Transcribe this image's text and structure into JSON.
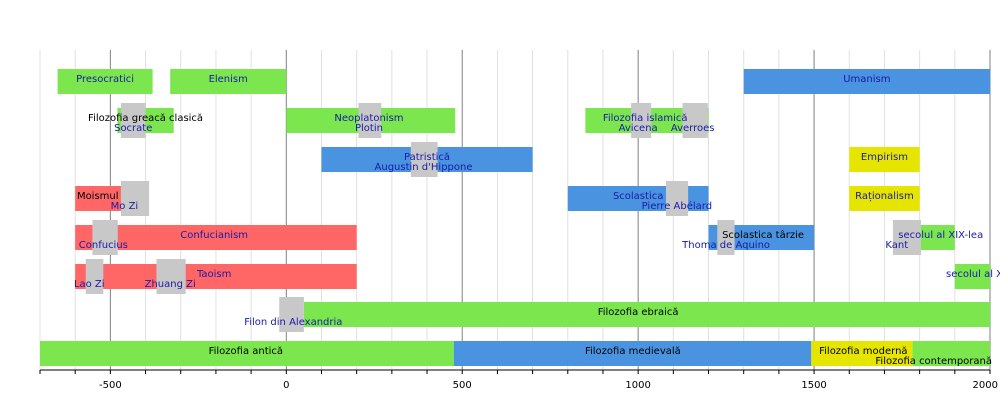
{
  "chart_data": {
    "type": "timeline",
    "x_range": [
      -700,
      2000
    ],
    "major_ticks": [
      {
        "value": -500,
        "label": "-500"
      },
      {
        "value": 0,
        "label": "0"
      },
      {
        "value": 500,
        "label": "500"
      },
      {
        "value": 1000,
        "label": "1000"
      },
      {
        "value": 1500,
        "label": "1500"
      },
      {
        "value": 2000,
        "label": "2000"
      }
    ],
    "minor_step": 100,
    "colors": {
      "green": "#7be64e",
      "blue": "#4a93e0",
      "red": "#ff6666",
      "yellow": "#e5e500",
      "gray": "#c8c8c8",
      "text_blue": "#1a1aa6",
      "text_black": "#000000",
      "grid_minor": "#e0e0e0",
      "grid_major": "#808080"
    },
    "bars": [
      {
        "label": "Presocratici",
        "start": -650,
        "end": -380,
        "row": 0,
        "color": "green",
        "text_color": "text_blue",
        "label_at": -515,
        "align": "middle",
        "line": 0
      },
      {
        "label": "Elenism",
        "start": -330,
        "end": 0,
        "row": 0,
        "color": "green",
        "text_color": "text_blue",
        "label_at": -165,
        "align": "middle",
        "line": 0
      },
      {
        "label": "Umanism",
        "start": 1300,
        "end": 2000,
        "row": 0,
        "color": "blue",
        "text_color": "text_blue",
        "label_at": 1650,
        "align": "middle",
        "line": 0
      },
      {
        "label": "Filozofia greacă clasică",
        "start": -480,
        "end": -320,
        "row": 1,
        "color": "green",
        "text_color": "text_black",
        "label_at": -400,
        "align": "middle",
        "line": 0
      },
      {
        "label": "Neoplatonism",
        "start": 0,
        "end": 480,
        "row": 1,
        "color": "green",
        "text_color": "text_blue",
        "label_at": 235,
        "align": "middle",
        "line": 0
      },
      {
        "label": "Filozofia islamică",
        "start": 850,
        "end": 1200,
        "row": 1,
        "color": "green",
        "text_color": "text_blue",
        "label_at": 1020,
        "align": "middle",
        "line": 0
      },
      {
        "label": "Patristică",
        "start": 100,
        "end": 700,
        "row": 2,
        "color": "blue",
        "text_color": "text_blue",
        "label_at": 400,
        "align": "middle",
        "line": 0
      },
      {
        "label": "Empirism",
        "start": 1600,
        "end": 1800,
        "row": 2,
        "color": "yellow",
        "text_color": "text_blue",
        "label_at": 1700,
        "align": "middle",
        "line": 0
      },
      {
        "label": "Moismul",
        "start": -600,
        "end": -450,
        "row": 3,
        "color": "red",
        "text_color": "text_black",
        "label_at": -595,
        "align": "start",
        "line": 0
      },
      {
        "label": "Scolastica",
        "start": 800,
        "end": 1200,
        "row": 3,
        "color": "blue",
        "text_color": "text_blue",
        "label_at": 1000,
        "align": "middle",
        "line": 0
      },
      {
        "label": "Raționalism",
        "start": 1600,
        "end": 1800,
        "row": 3,
        "color": "yellow",
        "text_color": "text_blue",
        "label_at": 1700,
        "align": "middle",
        "line": 0
      },
      {
        "label": "Confucianism",
        "start": -600,
        "end": 200,
        "row": 4,
        "color": "red",
        "text_color": "text_blue",
        "label_at": -205,
        "align": "middle",
        "line": 0
      },
      {
        "label": "Scolastica târzie",
        "start": 1200,
        "end": 1500,
        "row": 4,
        "color": "blue",
        "text_color": "text_black",
        "label_at": 1355,
        "align": "middle",
        "line": 0
      },
      {
        "label": "secolul al XIX-lea",
        "start": 1800,
        "end": 1900,
        "row": 4,
        "color": "green",
        "text_color": "text_blue",
        "label_at": 1860,
        "align": "middle",
        "line": 0
      },
      {
        "label": "Taoism",
        "start": -600,
        "end": 200,
        "row": 5,
        "color": "red",
        "text_color": "text_blue",
        "label_at": -205,
        "align": "middle",
        "line": 0
      },
      {
        "label": "secolul al XX-lea",
        "start": 1900,
        "end": 2000,
        "row": 5,
        "color": "green",
        "text_color": "text_blue",
        "label_at": 1875,
        "align": "start",
        "line": 0
      },
      {
        "label": "Filozofia ebraică",
        "start": 50,
        "end": 2000,
        "row": 6,
        "color": "green",
        "text_color": "text_black",
        "label_at": 1000,
        "align": "middle",
        "line": 0
      },
      {
        "label": "Filozofia antică",
        "start": -700,
        "end": 476,
        "row": 7,
        "color": "green",
        "text_color": "text_black",
        "label_at": -115,
        "align": "middle",
        "line": 0
      },
      {
        "label": "Filozofia medievală",
        "start": 476,
        "end": 1492,
        "row": 7,
        "color": "blue",
        "text_color": "text_black",
        "label_at": 985,
        "align": "middle",
        "line": 0
      },
      {
        "label": "Filozofia modernă",
        "start": 1492,
        "end": 1780,
        "row": 7,
        "color": "yellow",
        "text_color": "text_black",
        "label_at": 1640,
        "align": "middle",
        "line": 0
      },
      {
        "label": "Filozofia contemporană",
        "start": 1780,
        "end": 2000,
        "row": 7,
        "color": "green",
        "text_color": "text_black",
        "label_at": 1840,
        "align": "middle",
        "line": 1
      }
    ],
    "persons": [
      {
        "name": "Socrate",
        "start": -470,
        "end": -400,
        "row": 1,
        "label_at": -435
      },
      {
        "name": "Plotin",
        "start": 205,
        "end": 270,
        "row": 1,
        "label_at": 235
      },
      {
        "name": "Avicena",
        "start": 980,
        "end": 1037,
        "row": 1,
        "label_at": 1000
      },
      {
        "name": "Averroes",
        "start": 1126,
        "end": 1198,
        "row": 1,
        "label_at": 1155
      },
      {
        "name": "Augustin d'Hippone",
        "start": 354,
        "end": 430,
        "row": 2,
        "label_at": 390
      },
      {
        "name": "Mo Zi",
        "start": -470,
        "end": -390,
        "row": 3,
        "label_at": -460
      },
      {
        "name": "Pierre Abélard",
        "start": 1079,
        "end": 1142,
        "row": 3,
        "label_at": 1110
      },
      {
        "name": "Confucius",
        "start": -551,
        "end": -479,
        "row": 4,
        "label_at": -520
      },
      {
        "name": "Thoma de Aquino",
        "start": 1225,
        "end": 1274,
        "row": 4,
        "label_at": 1250
      },
      {
        "name": "Kant",
        "start": 1724,
        "end": 1804,
        "row": 4,
        "label_at": 1735
      },
      {
        "name": "Lao Zi",
        "start": -570,
        "end": -520,
        "row": 5,
        "label_at": -560
      },
      {
        "name": "Zhuang Zi",
        "start": -369,
        "end": -286,
        "row": 5,
        "label_at": -330
      },
      {
        "name": "Filon din Alexandria",
        "start": -20,
        "end": 50,
        "row": 6,
        "label_at": 20
      }
    ]
  }
}
